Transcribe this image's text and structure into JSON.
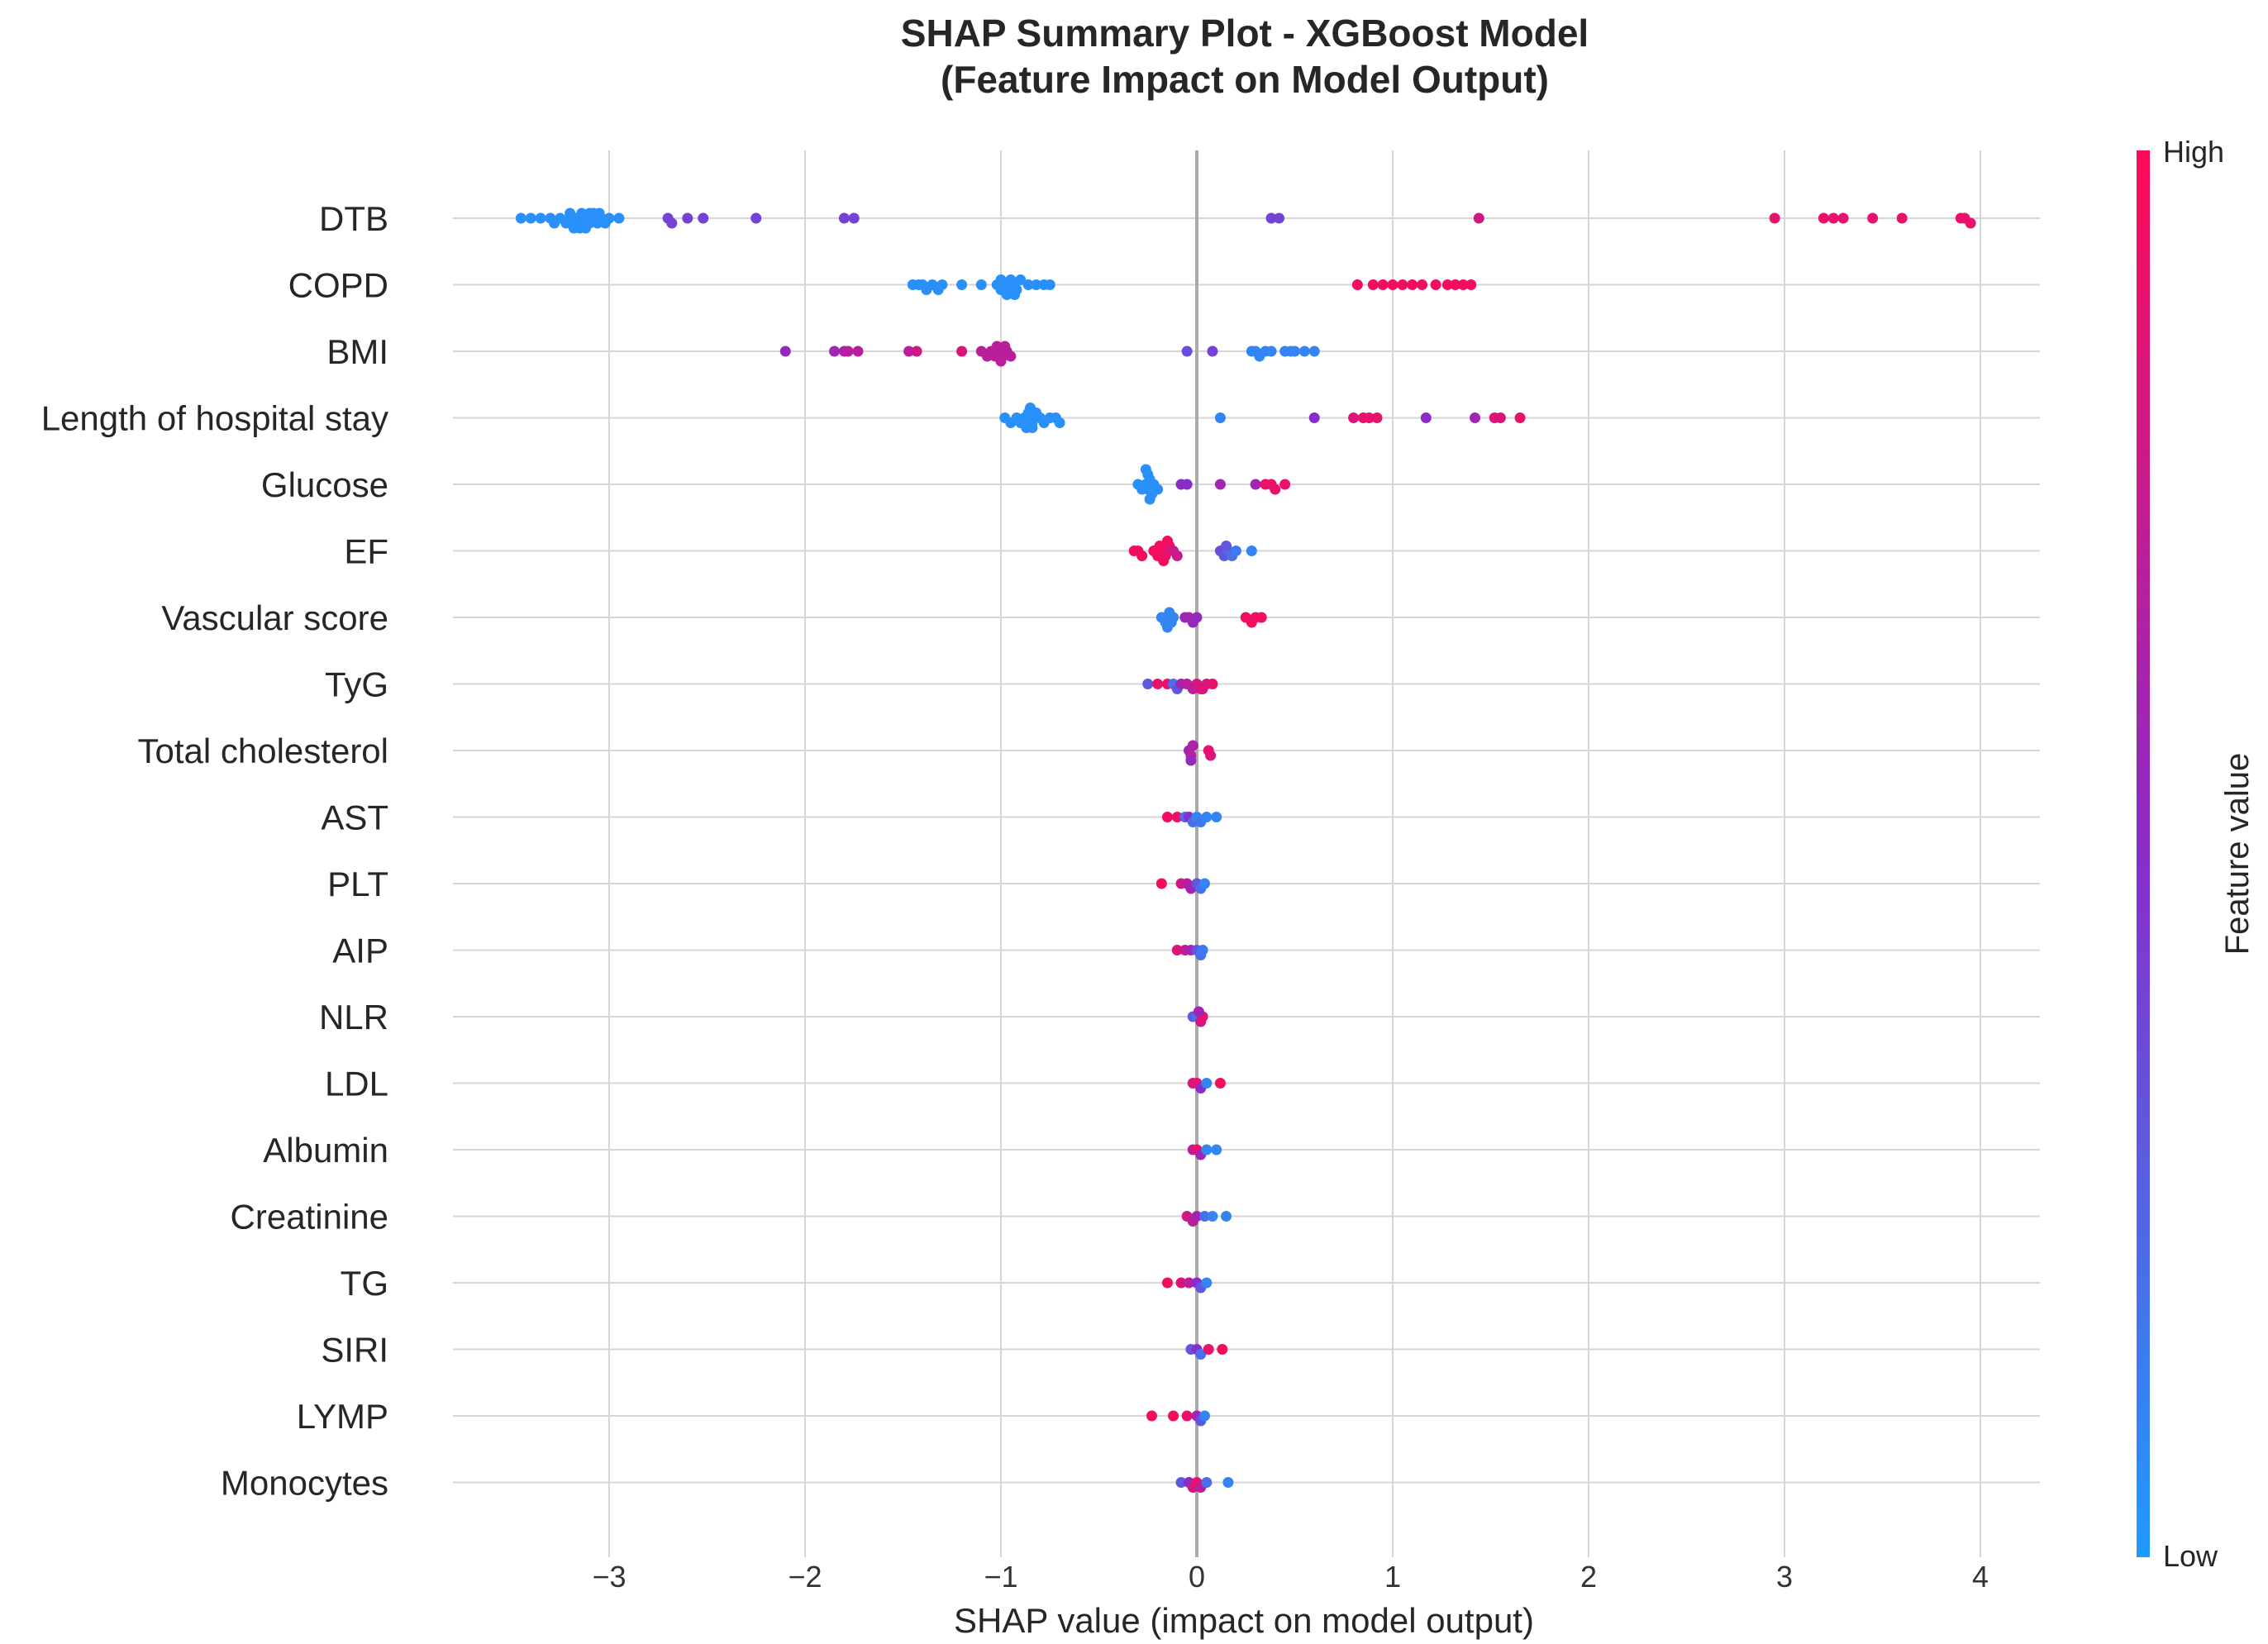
{
  "chart_data": {
    "type": "scatter",
    "title": "SHAP Summary Plot - XGBoost Model",
    "subtitle": "(Feature Impact on Model Output)",
    "xlabel": "SHAP value (impact on model output)",
    "xlim": [
      -3.8,
      4.3
    ],
    "xticks": [
      -3,
      -2,
      -1,
      0,
      1,
      2,
      3,
      4
    ],
    "xtick_labels": [
      "−3",
      "−2",
      "−1",
      "0",
      "1",
      "2",
      "3",
      "4"
    ],
    "grid": true,
    "colorbar": {
      "label": "Feature value",
      "high_label": "High",
      "low_label": "Low",
      "low_color": "#1e9bff",
      "mid_color": "#8a2cc9",
      "high_color": "#ff0a55"
    },
    "features": [
      {
        "name": "DTB",
        "points": [
          [
            -3.45,
            0.05
          ],
          [
            -3.4,
            0.05
          ],
          [
            -3.35,
            0.05
          ],
          [
            -3.3,
            0.05
          ],
          [
            -3.28,
            0.05
          ],
          [
            -3.25,
            0.05
          ],
          [
            -3.22,
            0.05
          ],
          [
            -3.2,
            0.05
          ],
          [
            -3.18,
            0.05
          ],
          [
            -3.17,
            0.05
          ],
          [
            -3.15,
            0.05
          ],
          [
            -3.14,
            0.05
          ],
          [
            -3.12,
            0.05
          ],
          [
            -3.1,
            0.05
          ],
          [
            -3.08,
            0.05
          ],
          [
            -3.06,
            0.05
          ],
          [
            -3.04,
            0.05
          ],
          [
            -3.02,
            0.05
          ],
          [
            -3.0,
            0.05
          ],
          [
            -2.95,
            0.05
          ],
          [
            -3.2,
            0.05
          ],
          [
            -3.15,
            0.05
          ],
          [
            -3.1,
            0.05
          ],
          [
            -3.05,
            0.05
          ],
          [
            -3.18,
            0.05
          ],
          [
            -3.12,
            0.05
          ],
          [
            -3.08,
            0.05
          ],
          [
            -2.7,
            0.4
          ],
          [
            -2.68,
            0.4
          ],
          [
            -2.6,
            0.4
          ],
          [
            -2.52,
            0.4
          ],
          [
            -2.25,
            0.4
          ],
          [
            -1.8,
            0.4
          ],
          [
            -1.75,
            0.4
          ],
          [
            0.38,
            0.4
          ],
          [
            0.42,
            0.4
          ],
          [
            1.44,
            0.8
          ],
          [
            2.95,
            0.9
          ],
          [
            3.2,
            0.9
          ],
          [
            3.25,
            0.9
          ],
          [
            3.3,
            0.9
          ],
          [
            3.45,
            0.9
          ],
          [
            3.6,
            0.9
          ],
          [
            3.9,
            0.9
          ],
          [
            3.92,
            0.9
          ],
          [
            3.95,
            0.9
          ]
        ]
      },
      {
        "name": "COPD",
        "points": [
          [
            -1.45,
            0.05
          ],
          [
            -1.42,
            0.05
          ],
          [
            -1.4,
            0.05
          ],
          [
            -1.35,
            0.05
          ],
          [
            -1.3,
            0.05
          ],
          [
            -1.2,
            0.05
          ],
          [
            -1.1,
            0.05
          ],
          [
            -1.02,
            0.05
          ],
          [
            -1.0,
            0.05
          ],
          [
            -0.98,
            0.05
          ],
          [
            -0.96,
            0.05
          ],
          [
            -0.94,
            0.05
          ],
          [
            -0.92,
            0.05
          ],
          [
            -0.9,
            0.05
          ],
          [
            -0.86,
            0.05
          ],
          [
            -0.82,
            0.05
          ],
          [
            -0.78,
            0.05
          ],
          [
            -0.75,
            0.05
          ],
          [
            -1.0,
            0.05
          ],
          [
            -0.95,
            0.05
          ],
          [
            -0.93,
            0.05
          ],
          [
            -0.97,
            0.05
          ],
          [
            -1.38,
            0.05
          ],
          [
            -1.32,
            0.05
          ],
          [
            0.82,
            0.95
          ],
          [
            0.9,
            0.95
          ],
          [
            0.95,
            0.95
          ],
          [
            1.0,
            0.95
          ],
          [
            1.05,
            0.95
          ],
          [
            1.1,
            0.95
          ],
          [
            1.15,
            0.95
          ],
          [
            1.22,
            0.95
          ],
          [
            1.28,
            0.95
          ],
          [
            1.32,
            0.95
          ],
          [
            1.36,
            0.95
          ],
          [
            1.4,
            0.95
          ]
        ]
      },
      {
        "name": "BMI",
        "points": [
          [
            -2.1,
            0.55
          ],
          [
            -1.85,
            0.6
          ],
          [
            -1.8,
            0.65
          ],
          [
            -1.78,
            0.7
          ],
          [
            -1.73,
            0.7
          ],
          [
            -1.47,
            0.7
          ],
          [
            -1.43,
            0.8
          ],
          [
            -1.2,
            0.85
          ],
          [
            -1.1,
            0.7
          ],
          [
            -1.07,
            0.7
          ],
          [
            -1.05,
            0.7
          ],
          [
            -1.03,
            0.7
          ],
          [
            -1.01,
            0.7
          ],
          [
            -0.99,
            0.7
          ],
          [
            -0.97,
            0.7
          ],
          [
            -0.95,
            0.7
          ],
          [
            -1.02,
            0.7
          ],
          [
            -0.98,
            0.7
          ],
          [
            -1.0,
            0.7
          ],
          [
            -0.05,
            0.35
          ],
          [
            0.08,
            0.4
          ],
          [
            0.28,
            0.1
          ],
          [
            0.3,
            0.1
          ],
          [
            0.32,
            0.1
          ],
          [
            0.35,
            0.1
          ],
          [
            0.38,
            0.1
          ],
          [
            0.45,
            0.1
          ],
          [
            0.48,
            0.1
          ],
          [
            0.5,
            0.1
          ],
          [
            0.55,
            0.1
          ],
          [
            0.6,
            0.1
          ]
        ]
      },
      {
        "name": "Length of hospital stay",
        "points": [
          [
            -0.98,
            0.05
          ],
          [
            -0.95,
            0.05
          ],
          [
            -0.92,
            0.05
          ],
          [
            -0.9,
            0.05
          ],
          [
            -0.88,
            0.05
          ],
          [
            -0.86,
            0.05
          ],
          [
            -0.85,
            0.05
          ],
          [
            -0.84,
            0.05
          ],
          [
            -0.82,
            0.05
          ],
          [
            -0.8,
            0.05
          ],
          [
            -0.78,
            0.05
          ],
          [
            -0.75,
            0.05
          ],
          [
            -0.72,
            0.05
          ],
          [
            -0.7,
            0.05
          ],
          [
            -0.86,
            0.05
          ],
          [
            -0.84,
            0.05
          ],
          [
            -0.85,
            0.05
          ],
          [
            -0.87,
            0.05
          ],
          [
            0.12,
            0.1
          ],
          [
            0.6,
            0.5
          ],
          [
            0.8,
            0.85
          ],
          [
            0.85,
            0.9
          ],
          [
            0.88,
            0.9
          ],
          [
            0.92,
            0.9
          ],
          [
            1.17,
            0.5
          ],
          [
            1.42,
            0.6
          ],
          [
            1.52,
            0.85
          ],
          [
            1.55,
            0.85
          ],
          [
            1.65,
            0.9
          ]
        ]
      },
      {
        "name": "Glucose",
        "points": [
          [
            -0.3,
            0.05
          ],
          [
            -0.28,
            0.05
          ],
          [
            -0.26,
            0.05
          ],
          [
            -0.25,
            0.05
          ],
          [
            -0.24,
            0.05
          ],
          [
            -0.23,
            0.05
          ],
          [
            -0.22,
            0.05
          ],
          [
            -0.2,
            0.05
          ],
          [
            -0.25,
            0.05
          ],
          [
            -0.24,
            0.05
          ],
          [
            -0.26,
            0.05
          ],
          [
            -0.08,
            0.5
          ],
          [
            -0.05,
            0.5
          ],
          [
            0.12,
            0.6
          ],
          [
            0.3,
            0.6
          ],
          [
            0.35,
            0.9
          ],
          [
            0.38,
            0.9
          ],
          [
            0.4,
            0.9
          ],
          [
            0.45,
            0.9
          ]
        ]
      },
      {
        "name": "EF",
        "points": [
          [
            -0.32,
            0.95
          ],
          [
            -0.3,
            0.95
          ],
          [
            -0.28,
            0.95
          ],
          [
            -0.22,
            0.95
          ],
          [
            -0.2,
            0.95
          ],
          [
            -0.18,
            0.95
          ],
          [
            -0.16,
            0.9
          ],
          [
            -0.14,
            0.85
          ],
          [
            -0.12,
            0.8
          ],
          [
            -0.1,
            0.75
          ],
          [
            -0.19,
            0.95
          ],
          [
            -0.17,
            0.95
          ],
          [
            -0.15,
            0.95
          ],
          [
            0.12,
            0.35
          ],
          [
            0.14,
            0.3
          ],
          [
            0.16,
            0.25
          ],
          [
            0.18,
            0.2
          ],
          [
            0.2,
            0.15
          ],
          [
            0.15,
            0.3
          ],
          [
            0.28,
            0.1
          ]
        ]
      },
      {
        "name": "Vascular score",
        "points": [
          [
            -0.18,
            0.1
          ],
          [
            -0.16,
            0.1
          ],
          [
            -0.14,
            0.1
          ],
          [
            -0.12,
            0.1
          ],
          [
            -0.15,
            0.1
          ],
          [
            -0.13,
            0.1
          ],
          [
            -0.06,
            0.55
          ],
          [
            -0.04,
            0.6
          ],
          [
            -0.02,
            0.55
          ],
          [
            0.0,
            0.55
          ],
          [
            0.25,
            0.95
          ],
          [
            0.28,
            0.95
          ],
          [
            0.3,
            0.95
          ],
          [
            0.33,
            0.95
          ]
        ]
      },
      {
        "name": "TyG",
        "points": [
          [
            -0.25,
            0.3
          ],
          [
            -0.2,
            0.9
          ],
          [
            -0.15,
            0.9
          ],
          [
            -0.12,
            0.2
          ],
          [
            -0.1,
            0.3
          ],
          [
            -0.08,
            0.6
          ],
          [
            -0.05,
            0.7
          ],
          [
            -0.02,
            0.7
          ],
          [
            0.0,
            0.8
          ],
          [
            0.02,
            0.8
          ],
          [
            0.05,
            0.8
          ],
          [
            0.08,
            0.9
          ],
          [
            0.03,
            0.85
          ]
        ]
      },
      {
        "name": "Total cholesterol",
        "points": [
          [
            -0.04,
            0.6
          ],
          [
            -0.03,
            0.7
          ],
          [
            -0.02,
            0.65
          ],
          [
            0.06,
            0.9
          ],
          [
            0.07,
            0.85
          ],
          [
            -0.03,
            0.55
          ]
        ]
      },
      {
        "name": "AST",
        "points": [
          [
            -0.15,
            0.95
          ],
          [
            -0.1,
            0.9
          ],
          [
            -0.06,
            0.2
          ],
          [
            -0.04,
            0.5
          ],
          [
            -0.02,
            0.2
          ],
          [
            0.0,
            0.1
          ],
          [
            0.02,
            0.15
          ],
          [
            0.05,
            0.1
          ],
          [
            0.1,
            0.1
          ]
        ]
      },
      {
        "name": "PLT",
        "points": [
          [
            -0.18,
            0.95
          ],
          [
            -0.08,
            0.8
          ],
          [
            -0.05,
            0.7
          ],
          [
            -0.03,
            0.6
          ],
          [
            0.0,
            0.3
          ],
          [
            0.02,
            0.2
          ],
          [
            0.04,
            0.1
          ]
        ]
      },
      {
        "name": "AIP",
        "points": [
          [
            -0.1,
            0.85
          ],
          [
            -0.06,
            0.75
          ],
          [
            -0.03,
            0.6
          ],
          [
            0.0,
            0.3
          ],
          [
            0.02,
            0.2
          ],
          [
            0.03,
            0.15
          ]
        ]
      },
      {
        "name": "NLR",
        "points": [
          [
            -0.02,
            0.3
          ],
          [
            0.0,
            0.2
          ],
          [
            0.02,
            0.8
          ],
          [
            0.03,
            0.9
          ],
          [
            0.01,
            0.6
          ]
        ]
      },
      {
        "name": "LDL",
        "points": [
          [
            -0.02,
            0.8
          ],
          [
            0.0,
            0.9
          ],
          [
            0.02,
            0.5
          ],
          [
            0.05,
            0.1
          ],
          [
            0.12,
            0.95
          ]
        ]
      },
      {
        "name": "Albumin",
        "points": [
          [
            -0.02,
            0.7
          ],
          [
            0.0,
            0.9
          ],
          [
            0.02,
            0.6
          ],
          [
            0.05,
            0.1
          ],
          [
            0.1,
            0.1
          ]
        ]
      },
      {
        "name": "Creatinine",
        "points": [
          [
            -0.05,
            0.8
          ],
          [
            -0.02,
            0.7
          ],
          [
            0.0,
            0.6
          ],
          [
            0.04,
            0.2
          ],
          [
            0.08,
            0.1
          ],
          [
            0.15,
            0.1
          ]
        ]
      },
      {
        "name": "TG",
        "points": [
          [
            -0.15,
            0.95
          ],
          [
            -0.08,
            0.85
          ],
          [
            -0.04,
            0.7
          ],
          [
            0.0,
            0.5
          ],
          [
            0.02,
            0.3
          ],
          [
            0.05,
            0.1
          ]
        ]
      },
      {
        "name": "SIRI",
        "points": [
          [
            -0.03,
            0.3
          ],
          [
            0.0,
            0.5
          ],
          [
            0.02,
            0.2
          ],
          [
            0.06,
            0.9
          ],
          [
            0.13,
            0.95
          ]
        ]
      },
      {
        "name": "LYMP",
        "points": [
          [
            -0.23,
            0.95
          ],
          [
            -0.12,
            0.95
          ],
          [
            -0.05,
            0.9
          ],
          [
            0.0,
            0.6
          ],
          [
            0.02,
            0.3
          ],
          [
            0.04,
            0.1
          ]
        ]
      },
      {
        "name": "Monocytes",
        "points": [
          [
            -0.08,
            0.3
          ],
          [
            -0.04,
            0.5
          ],
          [
            -0.02,
            0.8
          ],
          [
            0.0,
            0.9
          ],
          [
            0.02,
            0.7
          ],
          [
            0.05,
            0.2
          ],
          [
            0.16,
            0.1
          ]
        ]
      }
    ]
  }
}
